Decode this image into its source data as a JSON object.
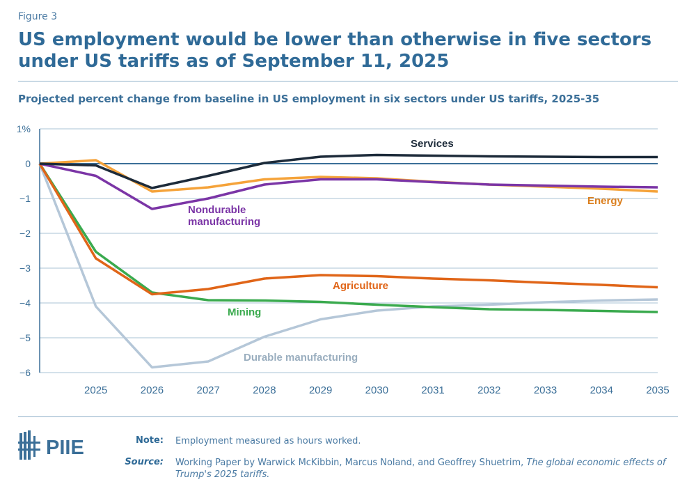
{
  "figure_label": "Figure 3",
  "title": "US employment would be lower than otherwise in five sectors under US tariffs as of September 11, 2025",
  "subtitle": "Projected percent change from baseline in US employment in six sectors under US tariffs, 2025-35",
  "logo_text": "PIIE",
  "note": {
    "label": "Note:",
    "text": "Employment measured as hours worked."
  },
  "source": {
    "label": "Source:",
    "text": "Working Paper by Warwick McKibbin, Marcus Noland, and Geoffrey Shuetrim, ",
    "title": "The global economic effects of Trump's 2025 tariffs."
  },
  "chart_data": {
    "type": "line",
    "title": "",
    "xlabel": "",
    "ylabel": "",
    "x": [
      2024,
      2025,
      2026,
      2027,
      2028,
      2029,
      2030,
      2031,
      2032,
      2033,
      2034,
      2035
    ],
    "x_tick_labels": [
      "2025",
      "2026",
      "2027",
      "2028",
      "2029",
      "2030",
      "2031",
      "2032",
      "2033",
      "2034",
      "2035"
    ],
    "y_tick_labels": [
      "1%",
      "0",
      "−1",
      "−2",
      "−3",
      "−4",
      "−5",
      "−6"
    ],
    "ylim": [
      -6,
      1
    ],
    "grid": true,
    "series": [
      {
        "name": "Durable manufacturing",
        "color": "#b5c7d8",
        "label_color": "#9aaebf",
        "values": [
          0,
          -4.1,
          -5.85,
          -5.68,
          -4.97,
          -4.47,
          -4.22,
          -4.1,
          -4.05,
          -3.98,
          -3.93,
          -3.9
        ]
      },
      {
        "name": "Mining",
        "color": "#3aaa4e",
        "label_color": "#3aaa4e",
        "values": [
          0,
          -2.53,
          -3.7,
          -3.92,
          -3.93,
          -3.97,
          -4.05,
          -4.12,
          -4.18,
          -4.2,
          -4.23,
          -4.26
        ]
      },
      {
        "name": "Agriculture",
        "color": "#e06518",
        "label_color": "#e06518",
        "values": [
          0,
          -2.72,
          -3.75,
          -3.6,
          -3.3,
          -3.2,
          -3.23,
          -3.3,
          -3.35,
          -3.42,
          -3.48,
          -3.55
        ]
      },
      {
        "name": "Energy",
        "color": "#f5a33a",
        "label_color": "#db7f1e",
        "values": [
          0,
          0.1,
          -0.8,
          -0.68,
          -0.45,
          -0.38,
          -0.42,
          -0.52,
          -0.6,
          -0.66,
          -0.72,
          -0.8
        ]
      },
      {
        "name": "Nondurable manufacturing",
        "label_lines": [
          "Nondurable",
          "manufacturing"
        ],
        "color": "#7b35a6",
        "label_color": "#7b35a6",
        "values": [
          0,
          -0.35,
          -1.3,
          -1.0,
          -0.6,
          -0.45,
          -0.45,
          -0.53,
          -0.6,
          -0.63,
          -0.66,
          -0.68
        ]
      },
      {
        "name": "Services",
        "color": "#1d2b3a",
        "label_color": "#1d2b3a",
        "values": [
          0,
          -0.05,
          -0.7,
          -0.35,
          0.02,
          0.2,
          0.25,
          0.23,
          0.21,
          0.2,
          0.19,
          0.19
        ]
      }
    ]
  }
}
